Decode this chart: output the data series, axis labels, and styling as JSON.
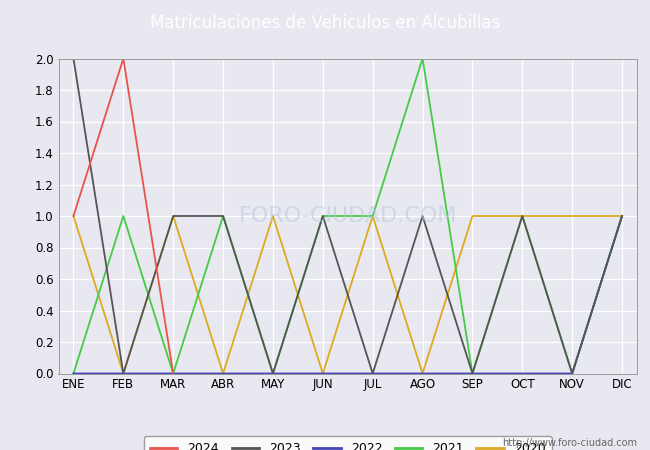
{
  "title": "Matriculaciones de Vehiculos en Alcubillas",
  "months": [
    "ENE",
    "FEB",
    "MAR",
    "ABR",
    "MAY",
    "JUN",
    "JUL",
    "AGO",
    "SEP",
    "OCT",
    "NOV",
    "DIC"
  ],
  "series": {
    "2024": {
      "color": "#e8534a",
      "data": [
        1,
        2,
        0,
        null,
        null,
        null,
        null,
        null,
        null,
        null,
        null,
        null
      ]
    },
    "2023": {
      "color": "#555555",
      "data": [
        2,
        0,
        1,
        1,
        0,
        1,
        0,
        1,
        0,
        1,
        0,
        1
      ]
    },
    "2022": {
      "color": "#4444bb",
      "data": [
        0,
        0,
        0,
        0,
        0,
        0,
        0,
        0,
        0,
        0,
        0,
        1
      ]
    },
    "2021": {
      "color": "#44cc44",
      "data": [
        0,
        1,
        0,
        1,
        0,
        1,
        1,
        2,
        0,
        1,
        0,
        1
      ]
    },
    "2020": {
      "color": "#ddaa22",
      "data": [
        1,
        0,
        1,
        0,
        1,
        0,
        1,
        0,
        1,
        1,
        1,
        1
      ]
    }
  },
  "ylim": [
    0.0,
    2.0
  ],
  "yticks": [
    0.0,
    0.2,
    0.4,
    0.6,
    0.8,
    1.0,
    1.2,
    1.4,
    1.6,
    1.8,
    2.0
  ],
  "plot_bg_color": "#e8e8f0",
  "grid_color": "#ffffff",
  "title_bg_color": "#4c6fbe",
  "title_text_color": "#ffffff",
  "figure_bg_color": "#e8e8f0",
  "footer_text": "http://www.foro-ciudad.com",
  "watermark": "FORO-CIUDAD.COM",
  "legend_order": [
    "2024",
    "2023",
    "2022",
    "2021",
    "2020"
  ]
}
